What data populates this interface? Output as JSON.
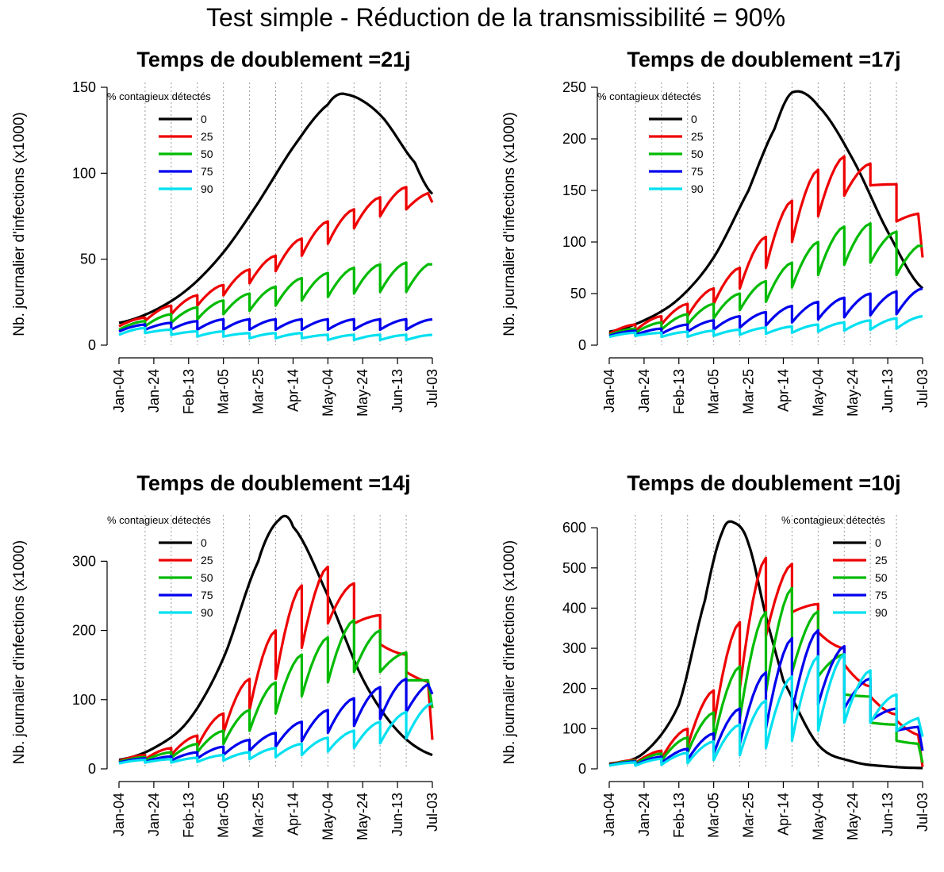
{
  "title": "Test simple - Réduction de la transmissibilité = 90%",
  "chart_data": [
    {
      "type": "line",
      "title": "Temps de doublement =21j",
      "ylabel": "Nb. journalier d'infections (x1000)",
      "xlabel": "",
      "x_ticks": [
        "Jan-04",
        "Jan-24",
        "Feb-13",
        "Mar-05",
        "Mar-25",
        "Apr-14",
        "May-04",
        "May-24",
        "Jun-13",
        "Jul-03"
      ],
      "y_ticks": [
        0,
        50,
        100,
        150
      ],
      "ylim": [
        0,
        150
      ],
      "xlim_days": [
        0,
        180
      ],
      "test_days": [
        15,
        30,
        45,
        60,
        75,
        90,
        105,
        120,
        135,
        150,
        165
      ],
      "grid": "vertical dotted lines at test days",
      "legend_title": "% contagieux détectés",
      "legend_position": "top-left",
      "series": [
        {
          "name": "0",
          "color": "#000000",
          "x_days": [
            0,
            20,
            40,
            60,
            80,
            100,
            120,
            130,
            150,
            170,
            180
          ],
          "values": [
            13,
            20,
            33,
            54,
            83,
            115,
            140,
            146,
            134,
            106,
            88
          ]
        },
        {
          "name": "25",
          "color": "#ee0000",
          "peaks": [
            16,
            23,
            29,
            35,
            44,
            52,
            62,
            72,
            79,
            86,
            92,
            89
          ],
          "troughs": [
            14,
            18,
            23,
            29,
            36,
            43,
            52,
            59,
            68,
            75,
            79,
            81
          ],
          "start": 11,
          "end": 83
        },
        {
          "name": "50",
          "color": "#00bb00",
          "peaks": [
            14,
            18,
            22,
            26,
            30,
            34,
            39,
            42,
            45,
            47,
            48,
            48
          ],
          "troughs": [
            11,
            13,
            15,
            18,
            20,
            23,
            26,
            28,
            30,
            31,
            31,
            32
          ],
          "start": 9,
          "end": 47
        },
        {
          "name": "75",
          "color": "#0000ee",
          "peaks": [
            12,
            13,
            14,
            15,
            15,
            15,
            15,
            15,
            15,
            15,
            15,
            15
          ],
          "troughs": [
            9,
            9,
            9,
            9,
            9,
            9,
            9,
            9,
            9,
            9,
            9,
            9
          ],
          "start": 8,
          "end": 15
        },
        {
          "name": "90",
          "color": "#00e0f0",
          "peaks": [
            10,
            9,
            8,
            8,
            7,
            7,
            7,
            6,
            6,
            6,
            6,
            6
          ],
          "troughs": [
            7,
            6,
            5,
            5,
            4,
            4,
            4,
            3,
            3,
            3,
            3,
            3
          ],
          "start": 6,
          "end": 6
        }
      ]
    },
    {
      "type": "line",
      "title": "Temps de doublement =17j",
      "ylabel": "Nb. journalier d'infections (x1000)",
      "xlabel": "",
      "x_ticks": [
        "Jan-04",
        "Jan-24",
        "Feb-13",
        "Mar-05",
        "Mar-25",
        "Apr-14",
        "May-04",
        "May-24",
        "Jun-13",
        "Jul-03"
      ],
      "y_ticks": [
        0,
        50,
        100,
        150,
        200,
        250
      ],
      "ylim": [
        0,
        250
      ],
      "xlim_days": [
        0,
        180
      ],
      "test_days": [
        15,
        30,
        45,
        60,
        75,
        90,
        105,
        120,
        135,
        150,
        165
      ],
      "grid": "vertical dotted lines at test days",
      "legend_title": "% contagieux détectés",
      "legend_position": "top-left",
      "series": [
        {
          "name": "0",
          "color": "#000000",
          "x_days": [
            0,
            20,
            40,
            60,
            80,
            95,
            105,
            120,
            140,
            160,
            180
          ],
          "values": [
            13,
            24,
            45,
            85,
            150,
            210,
            245,
            232,
            180,
            110,
            55
          ]
        },
        {
          "name": "25",
          "color": "#ee0000",
          "peaks": [
            20,
            28,
            40,
            55,
            75,
            105,
            140,
            170,
            183,
            176,
            156,
            128
          ],
          "troughs": [
            14,
            20,
            28,
            40,
            55,
            75,
            100,
            125,
            145,
            155,
            120,
            96
          ],
          "start": 11,
          "end": 85
        },
        {
          "name": "50",
          "color": "#00bb00",
          "peaks": [
            16,
            22,
            30,
            40,
            50,
            62,
            80,
            100,
            115,
            118,
            110,
            98
          ],
          "troughs": [
            12,
            15,
            20,
            26,
            34,
            42,
            56,
            68,
            78,
            80,
            68,
            88
          ],
          "start": 10,
          "end": 96
        },
        {
          "name": "75",
          "color": "#0000ee",
          "peaks": [
            14,
            16,
            20,
            24,
            28,
            32,
            38,
            42,
            46,
            50,
            52,
            55
          ],
          "troughs": [
            10,
            11,
            13,
            15,
            17,
            19,
            22,
            25,
            27,
            29,
            30,
            32
          ],
          "start": 9,
          "end": 55
        },
        {
          "name": "90",
          "color": "#00e0f0",
          "peaks": [
            12,
            12,
            13,
            14,
            15,
            17,
            18,
            20,
            22,
            24,
            26,
            28
          ],
          "troughs": [
            9,
            8,
            8,
            9,
            10,
            11,
            12,
            13,
            14,
            15,
            16,
            17
          ],
          "start": 8,
          "end": 28
        }
      ]
    },
    {
      "type": "line",
      "title": "Temps de doublement =14j",
      "ylabel": "Nb. journalier d'infections (x1000)",
      "xlabel": "",
      "x_ticks": [
        "Jan-04",
        "Jan-24",
        "Feb-13",
        "Mar-05",
        "Mar-25",
        "Apr-14",
        "May-04",
        "May-24",
        "Jun-13",
        "Jul-03"
      ],
      "y_ticks": [
        0,
        100,
        200,
        300
      ],
      "ylim": [
        0,
        360
      ],
      "xlim_days": [
        0,
        180
      ],
      "test_days": [
        15,
        30,
        45,
        60,
        75,
        90,
        105,
        120,
        135,
        150,
        165
      ],
      "grid": "vertical dotted lines at test days",
      "legend_title": "% contagieux détectés",
      "legend_position": "top-left",
      "series": [
        {
          "name": "0",
          "color": "#000000",
          "x_days": [
            0,
            20,
            40,
            60,
            80,
            92,
            100,
            120,
            140,
            160,
            180
          ],
          "values": [
            13,
            30,
            70,
            160,
            300,
            360,
            350,
            250,
            130,
            55,
            20
          ]
        },
        {
          "name": "25",
          "color": "#ee0000",
          "peaks": [
            20,
            30,
            48,
            80,
            130,
            200,
            265,
            292,
            268,
            222,
            165,
            125
          ],
          "troughs": [
            14,
            20,
            32,
            52,
            85,
            130,
            175,
            210,
            210,
            180,
            140,
            110
          ],
          "start": 11,
          "end": 42
        },
        {
          "name": "50",
          "color": "#00bb00",
          "peaks": [
            17,
            24,
            36,
            55,
            85,
            125,
            165,
            190,
            215,
            200,
            168,
            128
          ],
          "troughs": [
            12,
            16,
            24,
            36,
            55,
            80,
            105,
            125,
            140,
            140,
            128,
            100
          ],
          "start": 10,
          "end": 88
        },
        {
          "name": "75",
          "color": "#0000ee",
          "peaks": [
            15,
            18,
            24,
            32,
            42,
            52,
            68,
            85,
            102,
            118,
            130,
            125
          ],
          "troughs": [
            10,
            12,
            15,
            20,
            26,
            32,
            40,
            52,
            62,
            72,
            82,
            30
          ],
          "start": 9,
          "end": 108
        },
        {
          "name": "90",
          "color": "#00e0f0",
          "peaks": [
            13,
            14,
            16,
            20,
            24,
            30,
            36,
            45,
            55,
            68,
            82,
            95
          ],
          "troughs": [
            9,
            9,
            10,
            12,
            14,
            17,
            20,
            25,
            30,
            37,
            44,
            25
          ],
          "start": 8,
          "end": 95
        }
      ]
    },
    {
      "type": "line",
      "title": "Temps de doublement =10j",
      "ylabel": "Nb. journalier d'infections (x1000)",
      "xlabel": "",
      "x_ticks": [
        "Jan-04",
        "Jan-24",
        "Feb-13",
        "Mar-05",
        "Mar-25",
        "Apr-14",
        "May-04",
        "May-24",
        "Jun-13",
        "Jul-03"
      ],
      "y_ticks": [
        0,
        100,
        200,
        300,
        400,
        500,
        600
      ],
      "ylim": [
        0,
        620
      ],
      "xlim_days": [
        0,
        180
      ],
      "test_days": [
        15,
        30,
        45,
        60,
        75,
        90,
        105,
        120,
        135,
        150,
        165
      ],
      "grid": "vertical dotted lines at test days",
      "legend_title": "% contagieux détectés",
      "legend_position": "top-right",
      "series": [
        {
          "name": "0",
          "color": "#000000",
          "x_days": [
            0,
            20,
            40,
            55,
            65,
            72,
            80,
            90,
            100,
            120,
            140,
            160,
            180
          ],
          "values": [
            13,
            40,
            160,
            420,
            590,
            612,
            560,
            380,
            220,
            60,
            18,
            6,
            2
          ]
        },
        {
          "name": "25",
          "color": "#ee0000",
          "peaks": [
            22,
            45,
            100,
            195,
            365,
            525,
            510,
            410,
            300,
            205,
            135,
            82
          ],
          "troughs": [
            14,
            25,
            55,
            110,
            200,
            330,
            390,
            340,
            260,
            180,
            120,
            70
          ],
          "start": 11,
          "end": 5
        },
        {
          "name": "50",
          "color": "#00bb00",
          "peaks": [
            20,
            38,
            78,
            140,
            255,
            390,
            450,
            392,
            285,
            180,
            110,
            62
          ],
          "troughs": [
            12,
            20,
            40,
            70,
            125,
            190,
            240,
            230,
            185,
            115,
            70,
            40
          ],
          "start": 10,
          "end": 15
        },
        {
          "name": "75",
          "color": "#0000ee",
          "peaks": [
            18,
            30,
            50,
            88,
            150,
            240,
            325,
            345,
            305,
            225,
            150,
            105
          ],
          "troughs": [
            10,
            14,
            22,
            38,
            62,
            100,
            140,
            160,
            150,
            120,
            95,
            70
          ],
          "start": 9,
          "end": 45
        },
        {
          "name": "90",
          "color": "#00e0f0",
          "peaks": [
            16,
            25,
            40,
            68,
            110,
            170,
            230,
            280,
            285,
            245,
            185,
            128
          ],
          "troughs": [
            8,
            10,
            14,
            22,
            34,
            52,
            70,
            95,
            115,
            115,
            95,
            80
          ],
          "start": 8,
          "end": 80
        }
      ]
    }
  ]
}
